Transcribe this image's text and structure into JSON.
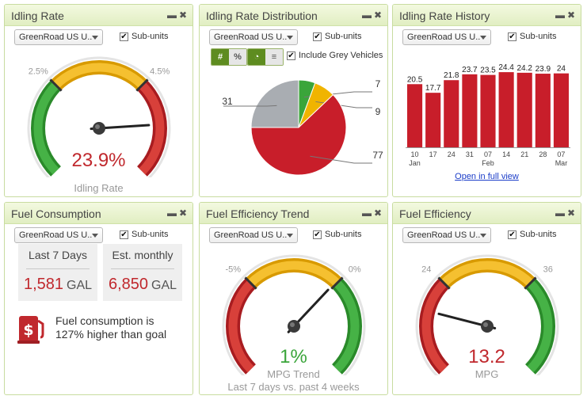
{
  "panels": {
    "idling_rate": {
      "title": "Idling Rate",
      "select": "GreenRoad US U..",
      "subunits": "Sub-units",
      "gauge": {
        "low_label": "2.5%",
        "high_label": "4.5%",
        "value": "23.9%",
        "caption": "Idling Rate",
        "needle_fraction": 0.82
      }
    },
    "idling_distribution": {
      "title": "Idling Rate Distribution",
      "select": "GreenRoad US U..",
      "subunits": "Sub-units",
      "toggle1": {
        "hash": "#",
        "percent": "%"
      },
      "include_grey": "Include Grey Vehicles"
    },
    "idling_history": {
      "title": "Idling Rate History",
      "select": "GreenRoad US U..",
      "subunits": "Sub-units",
      "link": "Open in full view"
    },
    "fuel_consumption": {
      "title": "Fuel Consumption",
      "select": "GreenRoad US U..",
      "subunits": "Sub-units",
      "last7": {
        "label": "Last 7 Days",
        "value": "1,581",
        "unit": "GAL"
      },
      "monthly": {
        "label": "Est. monthly",
        "value": "6,850",
        "unit": "GAL"
      },
      "message": "Fuel consumption is 127% higher than goal"
    },
    "fuel_trend": {
      "title": "Fuel Efficiency Trend",
      "select": "GreenRoad US U..",
      "subunits": "Sub-units",
      "gauge": {
        "low_label": "-5%",
        "high_label": "0%",
        "value": "1%",
        "caption": "MPG Trend",
        "sub_caption": "Last 7 days vs. past 4 weeks",
        "needle_fraction": 0.66
      }
    },
    "fuel_efficiency": {
      "title": "Fuel Efficiency",
      "select": "GreenRoad US U..",
      "subunits": "Sub-units",
      "gauge": {
        "low_label": "24",
        "high_label": "36",
        "value": "13.2",
        "caption": "MPG",
        "needle_fraction": 0.22
      }
    }
  },
  "chart_data": [
    {
      "type": "pie",
      "slices": [
        {
          "label": "7",
          "value": 7,
          "color": "#3aa53a"
        },
        {
          "label": "9",
          "value": 9,
          "color": "#f0b400"
        },
        {
          "label": "77",
          "value": 77,
          "color": "#c81e2a"
        },
        {
          "label": "31",
          "value": 31,
          "color": "#a9adb2"
        }
      ]
    },
    {
      "type": "bar",
      "categories": [
        "10 Jan",
        "17",
        "24",
        "31",
        "07 Feb",
        "14",
        "21",
        "28",
        "07 Mar"
      ],
      "tick_main": [
        "10",
        "17",
        "24",
        "31",
        "07",
        "14",
        "21",
        "28",
        "07"
      ],
      "tick_sub": [
        "Jan",
        "",
        "",
        "",
        "Feb",
        "",
        "",
        "",
        "Mar"
      ],
      "values": [
        20.5,
        17.7,
        21.8,
        23.7,
        23.5,
        24.4,
        24.2,
        23.9,
        24
      ],
      "labels": [
        "20.5",
        "17.7",
        "21.8",
        "23.7",
        "23.5",
        "24.4",
        "24.2",
        "23.9",
        "24"
      ],
      "color": "#c81e2a",
      "ylim": [
        0,
        27
      ]
    }
  ],
  "colors": {
    "accent_red": "#c0282d",
    "green": "#3aa53a",
    "amber": "#f0b400",
    "grey_text": "#999999"
  }
}
